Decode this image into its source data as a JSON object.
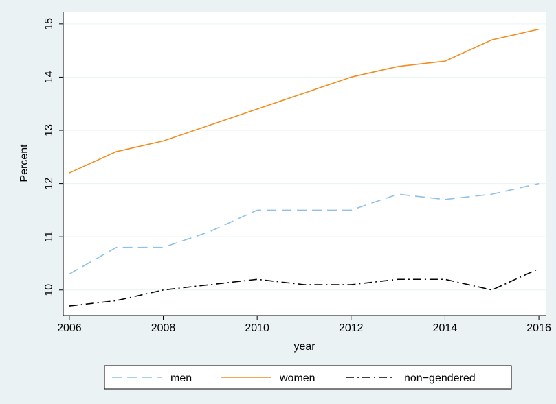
{
  "chart_data": {
    "type": "line",
    "x_label": "year",
    "y_label": "Percent",
    "x": [
      2006,
      2007,
      2008,
      2009,
      2010,
      2011,
      2012,
      2013,
      2014,
      2015,
      2016
    ],
    "series": [
      {
        "name": "men",
        "color": "#8ec1e6",
        "dash": "dash",
        "values": [
          10.3,
          10.8,
          10.8,
          11.1,
          11.5,
          11.5,
          11.5,
          11.8,
          11.7,
          11.8,
          12.0
        ]
      },
      {
        "name": "women",
        "color": "#f28c1c",
        "dash": "solid",
        "values": [
          12.2,
          12.6,
          12.8,
          13.1,
          13.4,
          13.7,
          14.0,
          14.2,
          14.3,
          14.7,
          14.9
        ]
      },
      {
        "name": "non−gendered",
        "color": "#000000",
        "dash": "dashdot",
        "values": [
          9.7,
          9.8,
          10.0,
          10.1,
          10.2,
          10.1,
          10.1,
          10.2,
          10.2,
          10.0,
          10.4
        ]
      }
    ],
    "xlim": [
      2005.87,
      2016.16
    ],
    "ylim": [
      9.52,
      15.23
    ],
    "xticks": [
      2006,
      2008,
      2010,
      2012,
      2014,
      2016
    ],
    "yticks": [
      10,
      11,
      12,
      13,
      14,
      15
    ],
    "grid": true,
    "legend": "bottom"
  }
}
